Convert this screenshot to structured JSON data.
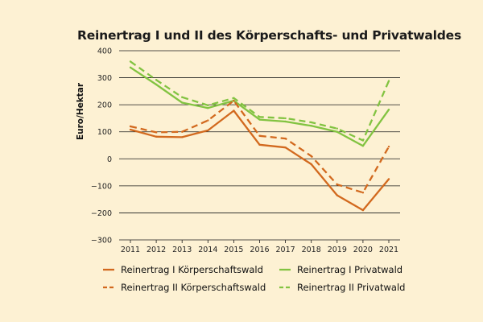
{
  "chart_data": {
    "type": "line",
    "title": "Reinertrag I und II des Körperschafts- und Privatwaldes",
    "xlabel": "",
    "ylabel": "Euro/Hektar",
    "x": [
      2011,
      2012,
      2013,
      2014,
      2015,
      2016,
      2017,
      2018,
      2019,
      2020,
      2021
    ],
    "xtick_labels": [
      "2011",
      "2012",
      "2013",
      "2014",
      "2015",
      "2016",
      "2017",
      "2018",
      "2019",
      "2020",
      "2021"
    ],
    "ylim": [
      -300,
      400
    ],
    "yticks": [
      400,
      300,
      200,
      100,
      0,
      -100,
      -200,
      -300
    ],
    "ytick_labels": [
      "400",
      "300",
      "200",
      "100",
      "0",
      "−100",
      "−200",
      "−300"
    ],
    "grid": true,
    "legend_position": "bottom",
    "series": [
      {
        "name": "Reinertrag I Körperschaftswald",
        "color": "#d2691e",
        "dashed": false,
        "values": [
          108,
          82,
          80,
          105,
          178,
          52,
          42,
          -20,
          -135,
          -190,
          -75
        ]
      },
      {
        "name": "Reinertrag I Privatwald",
        "color": "#82c341",
        "dashed": false,
        "values": [
          338,
          275,
          208,
          188,
          215,
          145,
          138,
          122,
          100,
          48,
          182
        ]
      },
      {
        "name": "Reinertrag II Körperschaftswald",
        "color": "#d2691e",
        "dashed": true,
        "values": [
          120,
          98,
          100,
          142,
          215,
          85,
          75,
          10,
          -95,
          -125,
          45
        ]
      },
      {
        "name": "Reinertrag II Privatwald",
        "color": "#82c341",
        "dashed": true,
        "values": [
          360,
          292,
          228,
          198,
          225,
          155,
          150,
          135,
          112,
          68,
          288
        ]
      }
    ]
  }
}
